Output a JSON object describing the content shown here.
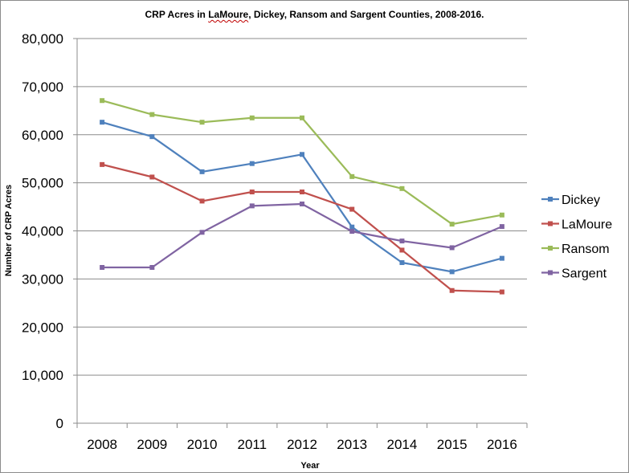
{
  "chart_data": {
    "type": "line",
    "title_parts": [
      "CRP Acres in ",
      "LaMoure",
      ", Dickey, Ransom and Sargent Counties, 2008-2016."
    ],
    "title": "CRP Acres in LaMoure, Dickey, Ransom and Sargent Counties, 2008-2016.",
    "xlabel": "Year",
    "ylabel": "Number of CRP Acres",
    "x": [
      "2008",
      "2009",
      "2010",
      "2011",
      "2012",
      "2013",
      "2014",
      "2015",
      "2016"
    ],
    "ylim": [
      0,
      80000
    ],
    "yticks": [
      "0",
      "10,000",
      "20,000",
      "30,000",
      "40,000",
      "50,000",
      "60,000",
      "70,000",
      "80,000"
    ],
    "grid": true,
    "legend_position": "right",
    "series": [
      {
        "name": "Dickey",
        "color": "#4f81bd",
        "values": [
          62600,
          59600,
          52300,
          54000,
          55900,
          40800,
          33400,
          31500,
          34300
        ]
      },
      {
        "name": "LaMoure",
        "color": "#c0504d",
        "values": [
          53800,
          51200,
          46200,
          48100,
          48100,
          44500,
          36000,
          27600,
          27300
        ]
      },
      {
        "name": "Ransom",
        "color": "#9bbb59",
        "values": [
          67100,
          64200,
          62600,
          63500,
          63500,
          51300,
          48800,
          41400,
          43300
        ]
      },
      {
        "name": "Sargent",
        "color": "#8064a2",
        "values": [
          32400,
          32400,
          39700,
          45200,
          45600,
          39900,
          37900,
          36500,
          40900
        ]
      }
    ]
  }
}
